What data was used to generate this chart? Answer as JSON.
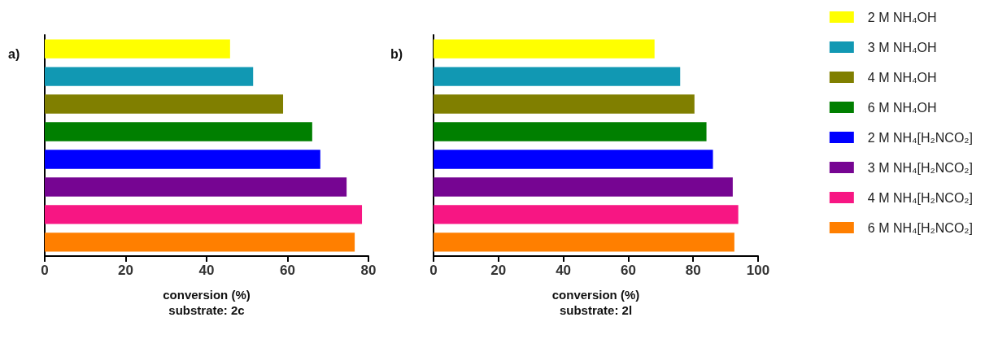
{
  "chart_data": [
    {
      "type": "bar",
      "orientation": "horizontal",
      "xlabel": "conversion (%)\nsubstrate: 2c",
      "annotations": [
        "a)"
      ],
      "categories": [
        null
      ],
      "xlim": [
        0,
        80
      ],
      "xticks": [
        0,
        20,
        40,
        60,
        80
      ],
      "grid": false,
      "legend": false,
      "series": [
        {
          "color": "#ffff00",
          "values": [
            45.8
          ]
        },
        {
          "color": "#1198b3",
          "values": [
            51.5
          ]
        },
        {
          "color": "#807f00",
          "values": [
            58.9
          ]
        },
        {
          "color": "#007f00",
          "values": [
            66.1
          ]
        },
        {
          "color": "#0000ff",
          "values": [
            68.1
          ]
        },
        {
          "color": "#760592",
          "values": [
            74.6
          ]
        },
        {
          "color": "#f71683",
          "values": [
            78.4
          ]
        },
        {
          "color": "#ff7f00",
          "values": [
            76.6
          ]
        }
      ]
    },
    {
      "type": "bar",
      "orientation": "horizontal",
      "xlabel": "conversion (%)\nsubstrate: 2l",
      "annotations": [
        "b)"
      ],
      "categories": [
        null
      ],
      "xlim": [
        0,
        100
      ],
      "xticks": [
        0,
        20,
        40,
        60,
        80,
        100
      ],
      "grid": false,
      "legend": "right",
      "series": [
        {
          "name": "2 M NH₄OH",
          "color": "#ffff00",
          "values": [
            68.1
          ]
        },
        {
          "name": "3 M NH₄OH",
          "color": "#1198b3",
          "values": [
            76.0
          ]
        },
        {
          "name": "4 M NH₄OH",
          "color": "#807f00",
          "values": [
            80.4
          ]
        },
        {
          "name": "6 M NH₄OH",
          "color": "#007f00",
          "values": [
            84.1
          ]
        },
        {
          "name": "2 M NH₄[H₂NCO₂]",
          "color": "#0000ff",
          "values": [
            86.1
          ]
        },
        {
          "name": "3 M NH₄[H₂NCO₂]",
          "color": "#760592",
          "values": [
            92.2
          ]
        },
        {
          "name": "4 M NH₄[H₂NCO₂]",
          "color": "#f71683",
          "values": [
            93.9
          ]
        },
        {
          "name": "6 M NH₄[H₂NCO₂]",
          "color": "#ff7f00",
          "values": [
            92.7
          ]
        }
      ]
    }
  ]
}
